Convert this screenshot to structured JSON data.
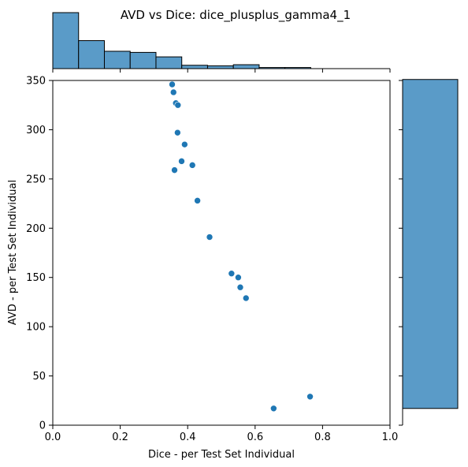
{
  "chart_data": {
    "type": "scatter",
    "title": "AVD vs Dice: dice_plusplus_gamma4_1",
    "xlabel": "Dice - per Test Set Individual",
    "ylabel": "AVD - per Test Set Individual",
    "xlim": [
      0.0,
      1.0
    ],
    "ylim": [
      0,
      350
    ],
    "xticks": [
      "0.0",
      "0.2",
      "0.4",
      "0.6",
      "0.8",
      "1.0"
    ],
    "yticks": [
      "0",
      "50",
      "100",
      "150",
      "200",
      "250",
      "300",
      "350"
    ],
    "grid": false,
    "point_color": "#1f77b4",
    "hist_color": "#5a9bc8",
    "points": [
      {
        "x": 0.354,
        "y": 346
      },
      {
        "x": 0.358,
        "y": 338
      },
      {
        "x": 0.365,
        "y": 327
      },
      {
        "x": 0.371,
        "y": 325
      },
      {
        "x": 0.37,
        "y": 297
      },
      {
        "x": 0.391,
        "y": 285
      },
      {
        "x": 0.382,
        "y": 268
      },
      {
        "x": 0.414,
        "y": 264
      },
      {
        "x": 0.361,
        "y": 259
      },
      {
        "x": 0.429,
        "y": 228
      },
      {
        "x": 0.465,
        "y": 191
      },
      {
        "x": 0.53,
        "y": 154
      },
      {
        "x": 0.55,
        "y": 150
      },
      {
        "x": 0.556,
        "y": 140
      },
      {
        "x": 0.573,
        "y": 129
      },
      {
        "x": 0.655,
        "y": 17
      },
      {
        "x": 0.763,
        "y": 29
      }
    ],
    "x_marginal_hist": {
      "bin_edges": [
        0.0,
        0.0765,
        0.153,
        0.2295,
        0.306,
        0.3825,
        0.459,
        0.5355,
        0.612,
        0.6885,
        0.765
      ],
      "heights": [
        1.0,
        0.5,
        0.31,
        0.29,
        0.21,
        0.06,
        0.05,
        0.07,
        0.02,
        0.02
      ]
    },
    "y_marginal_hist": {
      "bin_edges": [
        17,
        351
      ],
      "widths": [
        1.0
      ]
    }
  }
}
